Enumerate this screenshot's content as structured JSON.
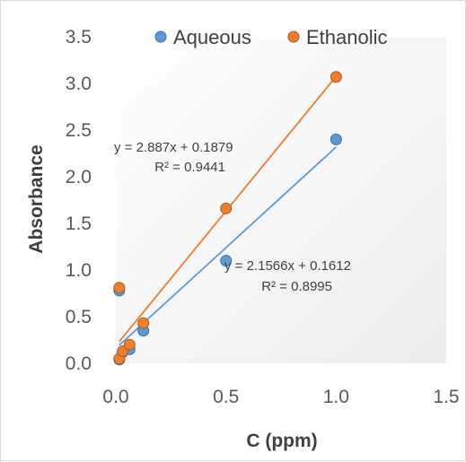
{
  "chart_data": {
    "type": "scatter",
    "title": "",
    "xlabel": "C (ppm)",
    "ylabel": "Absorbance",
    "xlim": [
      0,
      1.5
    ],
    "ylim": [
      0,
      3.5
    ],
    "x_ticks": [
      "0.0",
      "0.5",
      "1.0",
      "1.5"
    ],
    "y_ticks": [
      "0.0",
      "0.5",
      "1.0",
      "1.5",
      "2.0",
      "2.5",
      "3.0",
      "3.5"
    ],
    "grid": false,
    "legend_position": "top",
    "series": [
      {
        "name": "Aqueous",
        "color": "#5b9bd5",
        "edge_color": "#41719c",
        "points": [
          {
            "x": 0.0156,
            "y": 0.04
          },
          {
            "x": 0.0313,
            "y": 0.12
          },
          {
            "x": 0.0625,
            "y": 0.15
          },
          {
            "x": 0.125,
            "y": 0.35
          },
          {
            "x": 0.0156,
            "y": 0.78
          },
          {
            "x": 0.5,
            "y": 1.1
          },
          {
            "x": 1.0,
            "y": 2.4
          }
        ],
        "trendline": {
          "slope": 2.1566,
          "intercept": 0.1612,
          "equation": "y = 2.1566x + 0.1612",
          "r2": "R² = 0.8995"
        }
      },
      {
        "name": "Ethanolic",
        "color": "#ed7d31",
        "edge_color": "#ae5a21",
        "points": [
          {
            "x": 0.0156,
            "y": 0.05
          },
          {
            "x": 0.0313,
            "y": 0.13
          },
          {
            "x": 0.0625,
            "y": 0.2
          },
          {
            "x": 0.125,
            "y": 0.43
          },
          {
            "x": 0.0156,
            "y": 0.81
          },
          {
            "x": 0.5,
            "y": 1.66
          },
          {
            "x": 1.0,
            "y": 3.07
          }
        ],
        "trendline": {
          "slope": 2.887,
          "intercept": 0.1879,
          "equation": "y = 2.887x + 0.1879",
          "r2": "R² = 0.9441"
        }
      }
    ]
  }
}
